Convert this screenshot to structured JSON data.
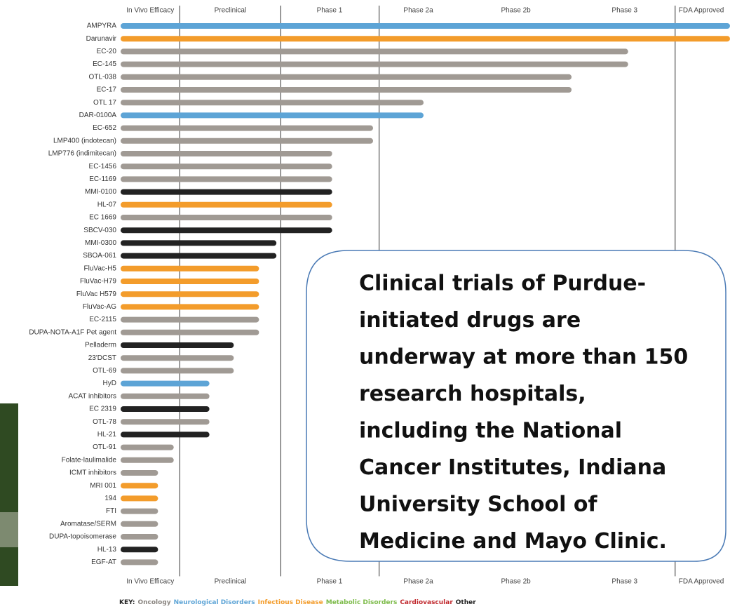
{
  "chart_data": {
    "type": "bar",
    "categories": [
      "AMPYRA",
      "Darunavir",
      "EC-20",
      "EC-145",
      "OTL-038",
      "EC-17",
      "OTL 17",
      "DAR-0100A",
      "EC-652",
      "LMP400 (indotecan)",
      "LMP776 (indimitecan)",
      "EC-1456",
      "EC-1169",
      "MMI-0100",
      "HL-07",
      "EC 1669",
      "SBCV-030",
      "MMI-0300",
      "SBOA-061",
      "FluVac-H5",
      "FluVac-H79",
      "FluVac H579",
      "FluVac-AG",
      "EC-2115",
      "DUPA-NOTA-A1F Pet agent",
      "Pelladerm",
      "23'DCST",
      "OTL-69",
      "HyD",
      "ACAT inhibitors",
      "EC 2319",
      "OTL-78",
      "HL-21",
      "OTL-91",
      "Folate-laulimalide",
      "ICMT inhibitors",
      "MRI 001",
      "194",
      "FTI",
      "Aromatase/SERM",
      "DUPA-topoisomerase",
      "HL-13",
      "EGF-AT"
    ],
    "values": [
      7,
      7,
      5.83,
      5.83,
      5.18,
      5.18,
      3.48,
      3.48,
      2.9,
      2.9,
      2.43,
      2.43,
      2.43,
      2.43,
      2.43,
      2.43,
      2.43,
      1.79,
      1.79,
      1.59,
      1.59,
      1.59,
      1.59,
      1.59,
      1.59,
      1.3,
      1.3,
      1.3,
      1.02,
      1.02,
      1.02,
      1.02,
      1.02,
      0.61,
      0.61,
      0.43,
      0.43,
      0.43,
      0.43,
      0.43,
      0.43,
      0.43,
      0.43
    ],
    "colors": [
      "#5da4d6",
      "#f39c2b",
      "#a09a94",
      "#a09a94",
      "#a09a94",
      "#a09a94",
      "#a09a94",
      "#5da4d6",
      "#a09a94",
      "#a09a94",
      "#a09a94",
      "#a09a94",
      "#a09a94",
      "#222222",
      "#f39c2b",
      "#a09a94",
      "#222222",
      "#222222",
      "#222222",
      "#f39c2b",
      "#f39c2b",
      "#f39c2b",
      "#f39c2b",
      "#a09a94",
      "#a09a94",
      "#222222",
      "#a09a94",
      "#a09a94",
      "#5da4d6",
      "#a09a94",
      "#222222",
      "#a09a94",
      "#222222",
      "#a09a94",
      "#a09a94",
      "#a09a94",
      "#f39c2b",
      "#f39c2b",
      "#a09a94",
      "#a09a94",
      "#a09a94",
      "#222222",
      "#a09a94"
    ],
    "xlim": [
      0,
      7
    ],
    "xticks": [
      {
        "value": 0.34,
        "label": "In Vivo Efficacy"
      },
      {
        "value": 1.26,
        "label": "Preclinical"
      },
      {
        "value": 2.4,
        "label": "Phase 1"
      },
      {
        "value": 3.42,
        "label": "Phase 2a"
      },
      {
        "value": 4.54,
        "label": "Phase 2b"
      },
      {
        "value": 5.79,
        "label": "Phase 3"
      },
      {
        "value": 6.67,
        "label": "FDA Approved"
      }
    ],
    "xgrid": [
      0.68,
      1.84,
      2.97,
      6.37
    ],
    "key_title": "KEY:",
    "legend": [
      {
        "name": "Oncology",
        "color": "#8a8580"
      },
      {
        "name": "Neurological Disorders",
        "color": "#5da4d6"
      },
      {
        "name": "Infectious Disease",
        "color": "#f39c2b"
      },
      {
        "name": "Metabolic Disorders",
        "color": "#7dbb4a"
      },
      {
        "name": "Cardiovascular",
        "color": "#c0282d"
      },
      {
        "name": "Other",
        "color": "#222222"
      }
    ],
    "annotation": [
      "Clinical trials of Purdue-",
      "initiated drugs are",
      "underway at more than 150",
      "research hospitals,",
      "including the National",
      "Cancer Institutes, Indiana",
      "University School of",
      "Medicine and Mayo Clinic."
    ]
  }
}
